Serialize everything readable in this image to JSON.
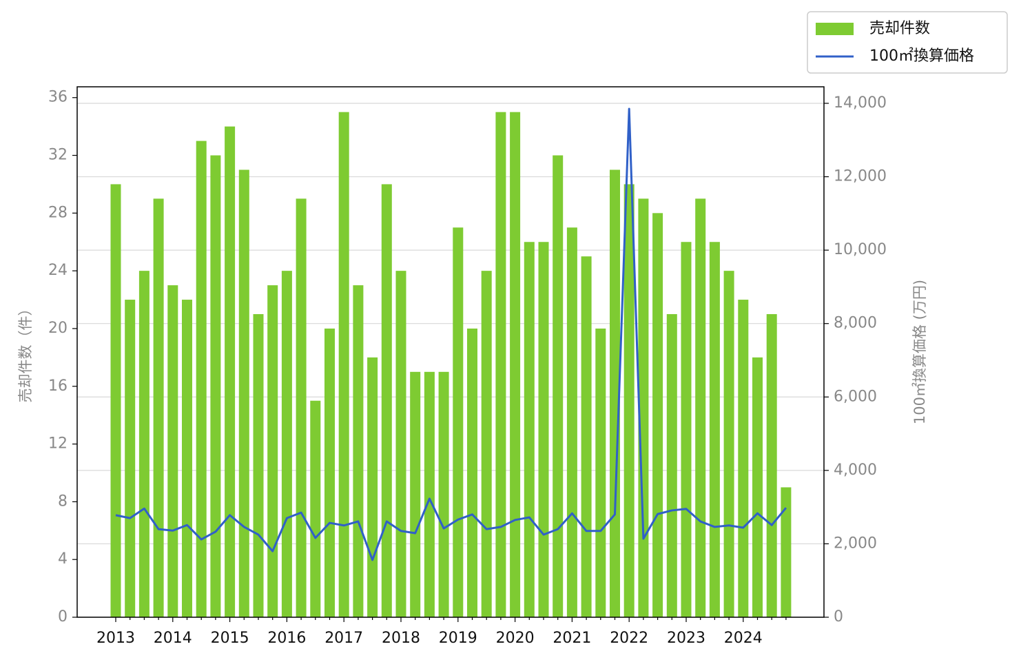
{
  "chart_data": {
    "type": "bar",
    "y_label": "売却件数（件）",
    "y2_label": "100㎡換算価格 (万円)",
    "categories": [
      "2013",
      null,
      null,
      null,
      "2014",
      null,
      null,
      null,
      "2015",
      null,
      null,
      null,
      "2016",
      null,
      null,
      null,
      "2017",
      null,
      null,
      null,
      "2018",
      null,
      null,
      null,
      "2019",
      null,
      null,
      null,
      "2020",
      null,
      null,
      null,
      "2021",
      null,
      null,
      null,
      "2022",
      null,
      null,
      null,
      "2023",
      null,
      null,
      null,
      "2024",
      null,
      null,
      null
    ],
    "series": [
      {
        "name": "売却件数",
        "type": "bar",
        "color": "#7ecb32",
        "values": [
          30,
          22,
          24,
          29,
          23,
          22,
          33,
          32,
          34,
          31,
          21,
          23,
          24,
          29,
          15,
          20,
          35,
          23,
          18,
          30,
          24,
          17,
          17,
          17,
          27,
          20,
          24,
          35,
          35,
          26,
          26,
          32,
          27,
          25,
          20,
          31,
          30,
          29,
          28,
          21,
          26,
          29,
          26,
          24,
          22,
          18,
          21,
          9
        ]
      },
      {
        "name": "100㎡換算価格",
        "type": "line",
        "axis": "y2",
        "color": "#3060c8",
        "values": [
          2780,
          2700,
          2960,
          2400,
          2360,
          2510,
          2120,
          2330,
          2780,
          2460,
          2250,
          1800,
          2700,
          2850,
          2160,
          2570,
          2500,
          2610,
          1560,
          2610,
          2350,
          2290,
          3230,
          2420,
          2660,
          2800,
          2400,
          2460,
          2650,
          2720,
          2250,
          2400,
          2830,
          2350,
          2350,
          2800,
          13850,
          2140,
          2810,
          2910,
          2950,
          2610,
          2460,
          2500,
          2440,
          2830,
          2510,
          2980
        ]
      }
    ],
    "ylim": [
      0,
      36.75
    ],
    "yticks": [
      0,
      4,
      8,
      12,
      16,
      20,
      24,
      28,
      32,
      36
    ],
    "y2lim": [
      0,
      14450
    ],
    "y2ticks": [
      0,
      {
        "value": 2000,
        "label": "2,000"
      },
      {
        "value": 4000,
        "label": "4,000"
      },
      {
        "value": 6000,
        "label": "6,000"
      },
      {
        "value": 8000,
        "label": "8,000"
      },
      {
        "value": 10000,
        "label": "10,000"
      },
      {
        "value": 12000,
        "label": "12,000"
      },
      {
        "value": 14000,
        "label": "14,000"
      }
    ],
    "grid": true,
    "legend": "top-right"
  }
}
